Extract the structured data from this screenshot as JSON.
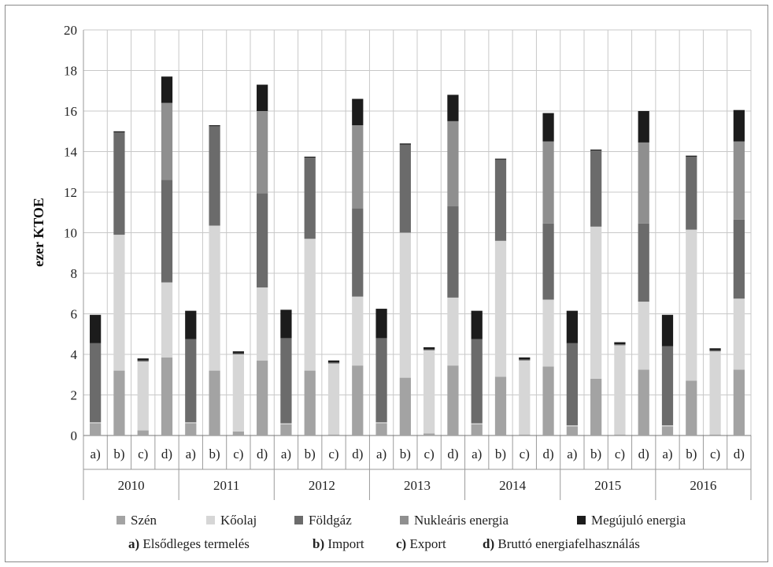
{
  "chart_data": {
    "type": "bar",
    "stacked": true,
    "title": "",
    "ylabel": "ezer KTOE",
    "ylim": [
      0,
      20
    ],
    "yticks": [
      0,
      2,
      4,
      6,
      8,
      10,
      12,
      14,
      16,
      18,
      20
    ],
    "grid": true,
    "legend_position": "bottom",
    "groups": [
      "2010",
      "2011",
      "2012",
      "2013",
      "2014",
      "2015",
      "2016"
    ],
    "subcategories": [
      "a)",
      "b)",
      "c)",
      "d)"
    ],
    "series": [
      {
        "name": "Szén",
        "color": "#a3a3a3",
        "values": [
          [
            0.6,
            3.2,
            0.25,
            3.85
          ],
          [
            0.6,
            3.2,
            0.2,
            3.7
          ],
          [
            0.55,
            3.2,
            0.05,
            3.45
          ],
          [
            0.6,
            2.85,
            0.1,
            3.45
          ],
          [
            0.55,
            2.9,
            0.05,
            3.4
          ],
          [
            0.45,
            2.8,
            0.05,
            3.25
          ],
          [
            0.45,
            2.7,
            0.05,
            3.25
          ]
        ]
      },
      {
        "name": "Kőolaj",
        "color": "#d6d6d6",
        "values": [
          [
            0.05,
            6.7,
            3.4,
            3.7
          ],
          [
            0.05,
            7.15,
            3.8,
            3.6
          ],
          [
            0.05,
            6.5,
            3.5,
            3.4
          ],
          [
            0.05,
            7.15,
            4.1,
            3.35
          ],
          [
            0.05,
            6.7,
            3.65,
            3.3
          ],
          [
            0.05,
            7.5,
            4.4,
            3.35
          ],
          [
            0.05,
            7.45,
            4.1,
            3.5
          ]
        ]
      },
      {
        "name": "Földgáz",
        "color": "#6b6b6b",
        "values": [
          [
            3.9,
            5.05,
            0.05,
            5.05
          ],
          [
            4.1,
            4.9,
            0.05,
            4.65
          ],
          [
            4.2,
            4.0,
            0.05,
            4.35
          ],
          [
            4.15,
            4.35,
            0.05,
            4.5
          ],
          [
            4.15,
            4.0,
            0.05,
            3.75
          ],
          [
            4.05,
            3.75,
            0.05,
            3.85
          ],
          [
            3.9,
            3.6,
            0.05,
            3.9
          ]
        ]
      },
      {
        "name": "Nukleáris energia",
        "color": "#8f8f8f",
        "values": [
          [
            0,
            0,
            0,
            3.8
          ],
          [
            0,
            0,
            0,
            4.05
          ],
          [
            0,
            0,
            0,
            4.1
          ],
          [
            0,
            0,
            0,
            4.2
          ],
          [
            0,
            0,
            0,
            4.05
          ],
          [
            0,
            0,
            0,
            4.0
          ],
          [
            0,
            0,
            0,
            3.85
          ]
        ]
      },
      {
        "name": "Megújuló energia",
        "color": "#1c1c1c",
        "values": [
          [
            1.4,
            0.05,
            0.1,
            1.3
          ],
          [
            1.4,
            0.05,
            0.1,
            1.3
          ],
          [
            1.4,
            0.05,
            0.1,
            1.3
          ],
          [
            1.45,
            0.05,
            0.1,
            1.3
          ],
          [
            1.4,
            0.05,
            0.1,
            1.4
          ],
          [
            1.6,
            0.05,
            0.1,
            1.55
          ],
          [
            1.55,
            0.05,
            0.1,
            1.55
          ]
        ]
      }
    ],
    "caption": [
      {
        "key": "a)",
        "text": "Elsődleges termelés"
      },
      {
        "key": "b)",
        "text": "Import"
      },
      {
        "key": "c)",
        "text": "Export"
      },
      {
        "key": "d)",
        "text": "Bruttó energiafelhasználás"
      }
    ]
  }
}
